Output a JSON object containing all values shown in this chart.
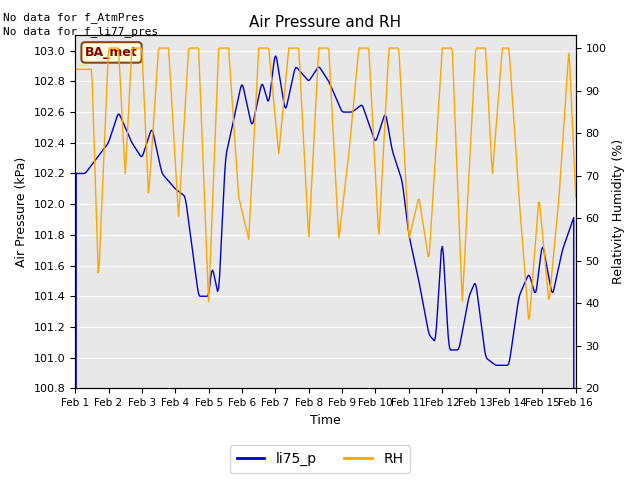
{
  "title": "Air Pressure and RH",
  "xlabel": "Time",
  "ylabel_left": "Air Pressure (kPa)",
  "ylabel_right": "Relativity Humidity (%)",
  "text_no_data_1": "No data for f_AtmPres",
  "text_no_data_2": "No data for f_li77_pres",
  "annotation_label": "BA_met",
  "x_tick_labels": [
    "Feb 1",
    "Feb 2",
    "Feb 3",
    "Feb 4",
    "Feb 5",
    "Feb 6",
    "Feb 7",
    "Feb 8",
    "Feb 9",
    "Feb 10",
    "Feb 11",
    "Feb 12",
    "Feb 13",
    "Feb 14",
    "Feb 15",
    "Feb 16"
  ],
  "ylim_left": [
    100.8,
    103.1
  ],
  "ylim_right": [
    20,
    103
  ],
  "yticks_left": [
    100.8,
    101.0,
    101.2,
    101.4,
    101.6,
    101.8,
    102.0,
    102.2,
    102.4,
    102.6,
    102.8,
    103.0
  ],
  "yticks_right": [
    20,
    30,
    40,
    50,
    60,
    70,
    80,
    90,
    100
  ],
  "color_blue": "#0000CC",
  "color_orange": "#FFA500",
  "background_color": "#FFFFFF",
  "plot_bg_color": "#E8E8E8",
  "grid_color": "#FFFFFF",
  "legend_labels": [
    "li75_p",
    "RH"
  ],
  "figsize": [
    6.4,
    4.8
  ],
  "dpi": 100
}
